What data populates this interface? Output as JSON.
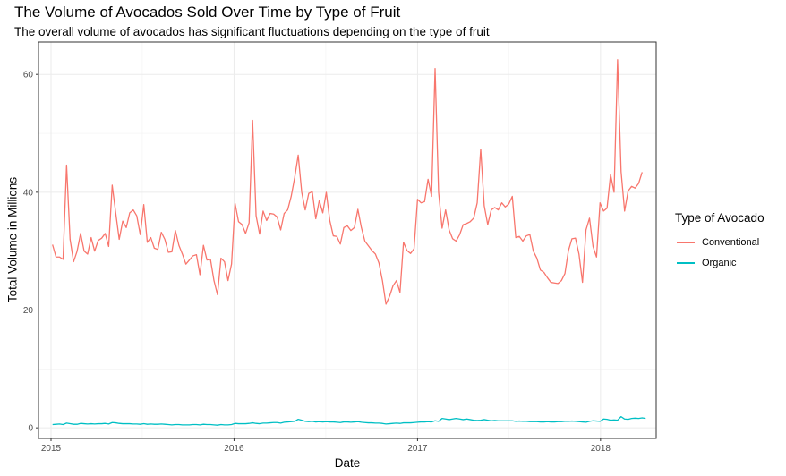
{
  "chart_data": {
    "type": "line",
    "title": "The Volume of Avocados Sold Over Time by Type of Fruit",
    "subtitle": "The overall volume of avocados has significant fluctuations depending on the type of fruit",
    "xlabel": "Date",
    "ylabel": "Total Volume in Millions",
    "x_ticks": [
      "2015",
      "2016",
      "2017",
      "2018"
    ],
    "y_ticks": [
      0,
      20,
      40,
      60
    ],
    "xlim": [
      "2014-12-07",
      "2018-04-22"
    ],
    "ylim": [
      -1.8,
      65.5
    ],
    "grid": true,
    "legend": {
      "title": "Type of Avocado",
      "position": "right"
    },
    "series": [
      {
        "name": "Conventional",
        "color": "#F8766D",
        "values": [
          31.1,
          29.0,
          29.0,
          28.6,
          44.6,
          32.0,
          28.2,
          30.0,
          33.0,
          30.0,
          29.5,
          32.3,
          30.0,
          31.8,
          32.2,
          33.0,
          30.8,
          41.2,
          36.5,
          32.0,
          35.1,
          34.0,
          36.5,
          37.0,
          36.0,
          32.8,
          37.9,
          31.5,
          32.3,
          30.5,
          30.3,
          33.2,
          32.0,
          29.8,
          29.9,
          33.5,
          31.0,
          29.5,
          27.8,
          28.5,
          29.2,
          29.4,
          26.0,
          31.0,
          28.5,
          28.6,
          25.0,
          22.6,
          28.8,
          28.2,
          25.0,
          27.8,
          38.1,
          35.0,
          34.5,
          33.0,
          34.8,
          52.2,
          36.0,
          32.9,
          36.8,
          35.2,
          36.4,
          36.3,
          35.8,
          33.6,
          36.4,
          37.0,
          39.3,
          42.5,
          46.3,
          40.0,
          37.0,
          39.8,
          40.1,
          35.5,
          38.6,
          36.5,
          40.0,
          35.2,
          32.6,
          32.5,
          31.2,
          34.0,
          34.3,
          33.5,
          34.0,
          37.1,
          34.0,
          31.7,
          30.9,
          30.1,
          29.5,
          28.0,
          25.0,
          21.0,
          22.3,
          24.1,
          25.0,
          23.0,
          31.5,
          30.1,
          29.6,
          30.4,
          38.8,
          38.2,
          38.4,
          42.2,
          39.3,
          61.0,
          40.0,
          33.9,
          37.0,
          33.6,
          32.1,
          31.7,
          32.8,
          34.5,
          34.7,
          35.0,
          35.6,
          38.2,
          47.3,
          37.7,
          34.5,
          37.0,
          37.4,
          37.0,
          38.2,
          37.5,
          38.0,
          39.3,
          32.3,
          32.5,
          31.7,
          32.6,
          32.8,
          30.0,
          28.8,
          26.8,
          26.4,
          25.5,
          24.7,
          24.6,
          24.5,
          25.0,
          26.2,
          30.1,
          32.1,
          32.2,
          29.5,
          24.7,
          33.6,
          35.6,
          30.8,
          29.0,
          38.2,
          36.8,
          37.3,
          43.0,
          40.0,
          62.5,
          43.5,
          36.8,
          40.2,
          41.0,
          40.7,
          41.5,
          43.4
        ]
      },
      {
        "name": "Organic",
        "color": "#00BFC4",
        "values": [
          0.55,
          0.6,
          0.65,
          0.55,
          0.8,
          0.7,
          0.6,
          0.6,
          0.75,
          0.7,
          0.65,
          0.7,
          0.65,
          0.7,
          0.7,
          0.75,
          0.65,
          0.9,
          0.85,
          0.75,
          0.7,
          0.7,
          0.7,
          0.65,
          0.65,
          0.6,
          0.7,
          0.6,
          0.65,
          0.6,
          0.6,
          0.65,
          0.6,
          0.55,
          0.5,
          0.55,
          0.55,
          0.5,
          0.5,
          0.5,
          0.55,
          0.55,
          0.5,
          0.6,
          0.55,
          0.55,
          0.5,
          0.45,
          0.55,
          0.5,
          0.5,
          0.55,
          0.75,
          0.7,
          0.7,
          0.7,
          0.75,
          0.85,
          0.75,
          0.7,
          0.8,
          0.8,
          0.85,
          0.9,
          0.9,
          0.8,
          0.95,
          1.0,
          1.05,
          1.1,
          1.45,
          1.3,
          1.1,
          1.05,
          1.1,
          1.0,
          1.05,
          1.0,
          1.05,
          1.0,
          1.0,
          0.95,
          0.9,
          1.0,
          1.0,
          0.95,
          1.0,
          1.05,
          0.95,
          0.9,
          0.85,
          0.85,
          0.8,
          0.8,
          0.75,
          0.65,
          0.7,
          0.75,
          0.8,
          0.75,
          0.85,
          0.85,
          0.85,
          0.9,
          0.95,
          1.0,
          1.0,
          1.05,
          1.0,
          1.2,
          1.1,
          1.6,
          1.5,
          1.4,
          1.5,
          1.6,
          1.5,
          1.4,
          1.5,
          1.4,
          1.3,
          1.25,
          1.3,
          1.4,
          1.3,
          1.2,
          1.25,
          1.2,
          1.2,
          1.2,
          1.2,
          1.2,
          1.1,
          1.15,
          1.1,
          1.1,
          1.05,
          1.05,
          1.05,
          1.0,
          1.0,
          1.05,
          1.0,
          1.0,
          1.05,
          1.05,
          1.1,
          1.1,
          1.15,
          1.1,
          1.05,
          1.0,
          0.95,
          1.1,
          1.2,
          1.15,
          1.1,
          1.5,
          1.45,
          1.3,
          1.35,
          1.3,
          1.9,
          1.5,
          1.45,
          1.6,
          1.65,
          1.6,
          1.7,
          1.6
        ]
      }
    ]
  }
}
